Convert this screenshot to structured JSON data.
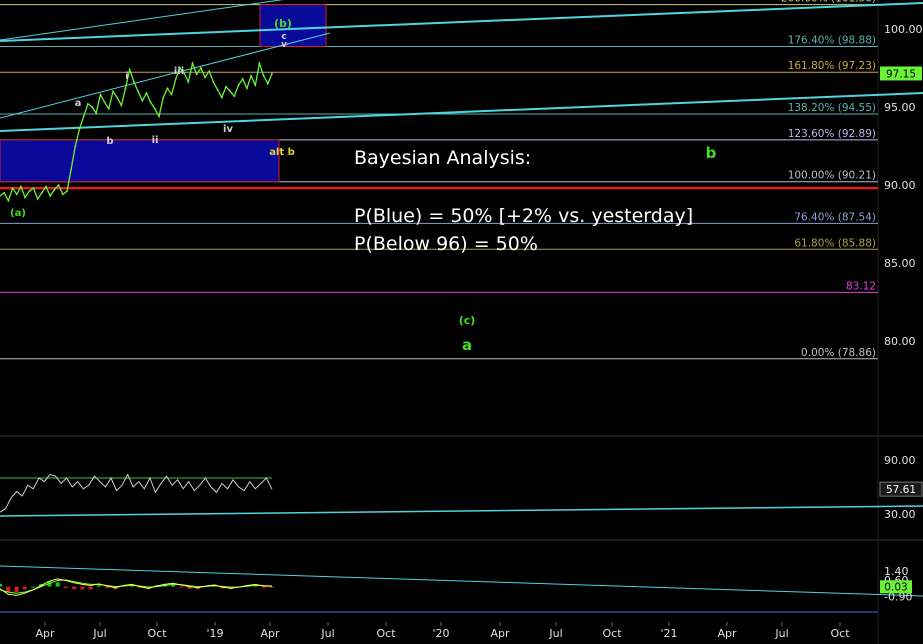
{
  "chart_data": [
    {
      "type": "line",
      "panel": "price",
      "ylim": [
        75.5,
        103
      ],
      "yticks": [
        100.0,
        95.0,
        90.0,
        85.0,
        80.0
      ],
      "ytick_labels": [
        "100.00",
        "95.00",
        "90.00",
        "85.00",
        "80.00"
      ],
      "last_price": 97.15,
      "last_price_label": "97.15",
      "series": [
        {
          "values": [
            89.3,
            89.5,
            89.0,
            89.8,
            89.4,
            89.9,
            89.2,
            89.6,
            89.8,
            89.1,
            89.5,
            89.9,
            89.3,
            89.7,
            90.0,
            89.4,
            89.6,
            91.0,
            92.5,
            93.6,
            94.4,
            95.2,
            95.0,
            94.6,
            95.8,
            95.3,
            94.9,
            96.0,
            95.6,
            95.1,
            96.2,
            97.4,
            96.6,
            96.0,
            95.4,
            95.9,
            95.3,
            94.9,
            94.4,
            95.6,
            96.2,
            95.8,
            96.8,
            97.5,
            97.2,
            96.6,
            97.8,
            97.1,
            97.5,
            96.9,
            97.3,
            96.6,
            96.1,
            95.6,
            96.3,
            96.0,
            95.7,
            96.4,
            96.8,
            96.2,
            97.0,
            96.4,
            97.8,
            97.0,
            96.5,
            97.15
          ]
        }
      ],
      "fib_levels": [
        {
          "label": "200.00% (101.56)",
          "value": 101.56,
          "color": "#c9c98a"
        },
        {
          "label": "176.40% (98.88)",
          "value": 98.88,
          "color": "#5ab0b0"
        },
        {
          "label": "161.80% (97.23)",
          "value": 97.23,
          "color": "#c9a64a"
        },
        {
          "label": "138.20% (94.55)",
          "value": 94.55,
          "color": "#5ab0b0"
        },
        {
          "label": "123.60% (92.89)",
          "value": 92.89,
          "color": "#b9b9e6"
        },
        {
          "label": "100.00% (90.21)",
          "value": 90.21,
          "color": "#bdbdbd"
        },
        {
          "label": "76.40% (87.54)",
          "value": 87.54,
          "color": "#8aa0d0"
        },
        {
          "label": "61.80% (85.88)",
          "value": 85.88,
          "color": "#a6a04a"
        },
        {
          "label": "83.12",
          "value": 83.12,
          "color": "#e040e0"
        },
        {
          "label": "0.00% (78.86)",
          "value": 78.86,
          "color": "#bdbdbd"
        }
      ],
      "support_level": 89.8,
      "wave_labels": {
        "a_paren": "(a)",
        "a_small": "a",
        "b_small": "b",
        "i": "i",
        "ii": "ii",
        "iii": "iii",
        "iv": "iv",
        "b_paren": "(b)",
        "c": "c",
        "v": "v",
        "alt_b": "alt b",
        "big_b": "b",
        "c_paren": "(c)",
        "big_a": "a"
      }
    },
    {
      "type": "line",
      "panel": "rsi",
      "ylim": [
        20,
        100
      ],
      "ytick_labels": [
        "90.00",
        "30.00"
      ],
      "last_value_label": "57.61",
      "series": [
        {
          "values": [
            32,
            36,
            48,
            55,
            50,
            62,
            58,
            70,
            66,
            74,
            72,
            64,
            70,
            60,
            66,
            58,
            62,
            72,
            66,
            60,
            70,
            56,
            62,
            74,
            60,
            66,
            58,
            70,
            54,
            64,
            72,
            62,
            68,
            58,
            66,
            56,
            62,
            70,
            60,
            54,
            64,
            58,
            68,
            60,
            56,
            66,
            58,
            64,
            70,
            57.61
          ]
        }
      ]
    },
    {
      "type": "line",
      "panel": "macd",
      "ylim": [
        -1.2,
        1.6
      ],
      "ytick_labels": [
        "1.40",
        "0.60",
        "-0.20",
        "-0.90"
      ],
      "last_value_label": "0.03",
      "series": [
        {
          "values": [
            -0.2,
            -0.7,
            -0.8,
            -0.6,
            -0.3,
            0.1,
            0.5,
            0.7,
            0.55,
            0.35,
            0.2,
            0.1,
            0.25,
            0.05,
            -0.1,
            0.1,
            0.2,
            0.0,
            -0.15,
            0.05,
            0.2,
            0.3,
            0.15,
            0.0,
            -0.1,
            0.05,
            0.15,
            -0.05,
            -0.15,
            -0.05,
            0.1,
            0.2,
            0.05,
            0.03
          ]
        },
        {
          "values": [
            -0.3,
            -0.5,
            -0.6,
            -0.5,
            -0.3,
            0.0,
            0.3,
            0.55,
            0.6,
            0.45,
            0.3,
            0.2,
            0.2,
            0.1,
            0.0,
            0.05,
            0.12,
            0.05,
            -0.05,
            0.0,
            0.1,
            0.2,
            0.18,
            0.08,
            0.0,
            0.02,
            0.08,
            0.02,
            -0.05,
            -0.04,
            0.04,
            0.12,
            0.09,
            0.05
          ]
        }
      ]
    }
  ],
  "x_ticks": [
    "Apr",
    "Jul",
    "Oct",
    "'19",
    "Apr",
    "Jul",
    "Oct",
    "'20",
    "Apr",
    "Jul",
    "Oct",
    "'21",
    "Apr",
    "Jul",
    "Oct"
  ],
  "analysis": {
    "title": "Bayesian Analysis:",
    "line1": "P(Blue) = 50% [+2% vs. yesterday]",
    "line2": "P(Below 96) = 50%"
  },
  "colors": {
    "price": "#6cf236",
    "fib_green": "#44dd22",
    "trend": "#4fd4dc",
    "box_fill": "#0a0a9a",
    "box_border": "#d02020",
    "support": "#e02020",
    "rsi": "#cfcfcf",
    "macd_fast": "#ffff40",
    "macd_slow": "#60ff60",
    "hist_pos": "#20c020",
    "hist_neg": "#d02020"
  }
}
